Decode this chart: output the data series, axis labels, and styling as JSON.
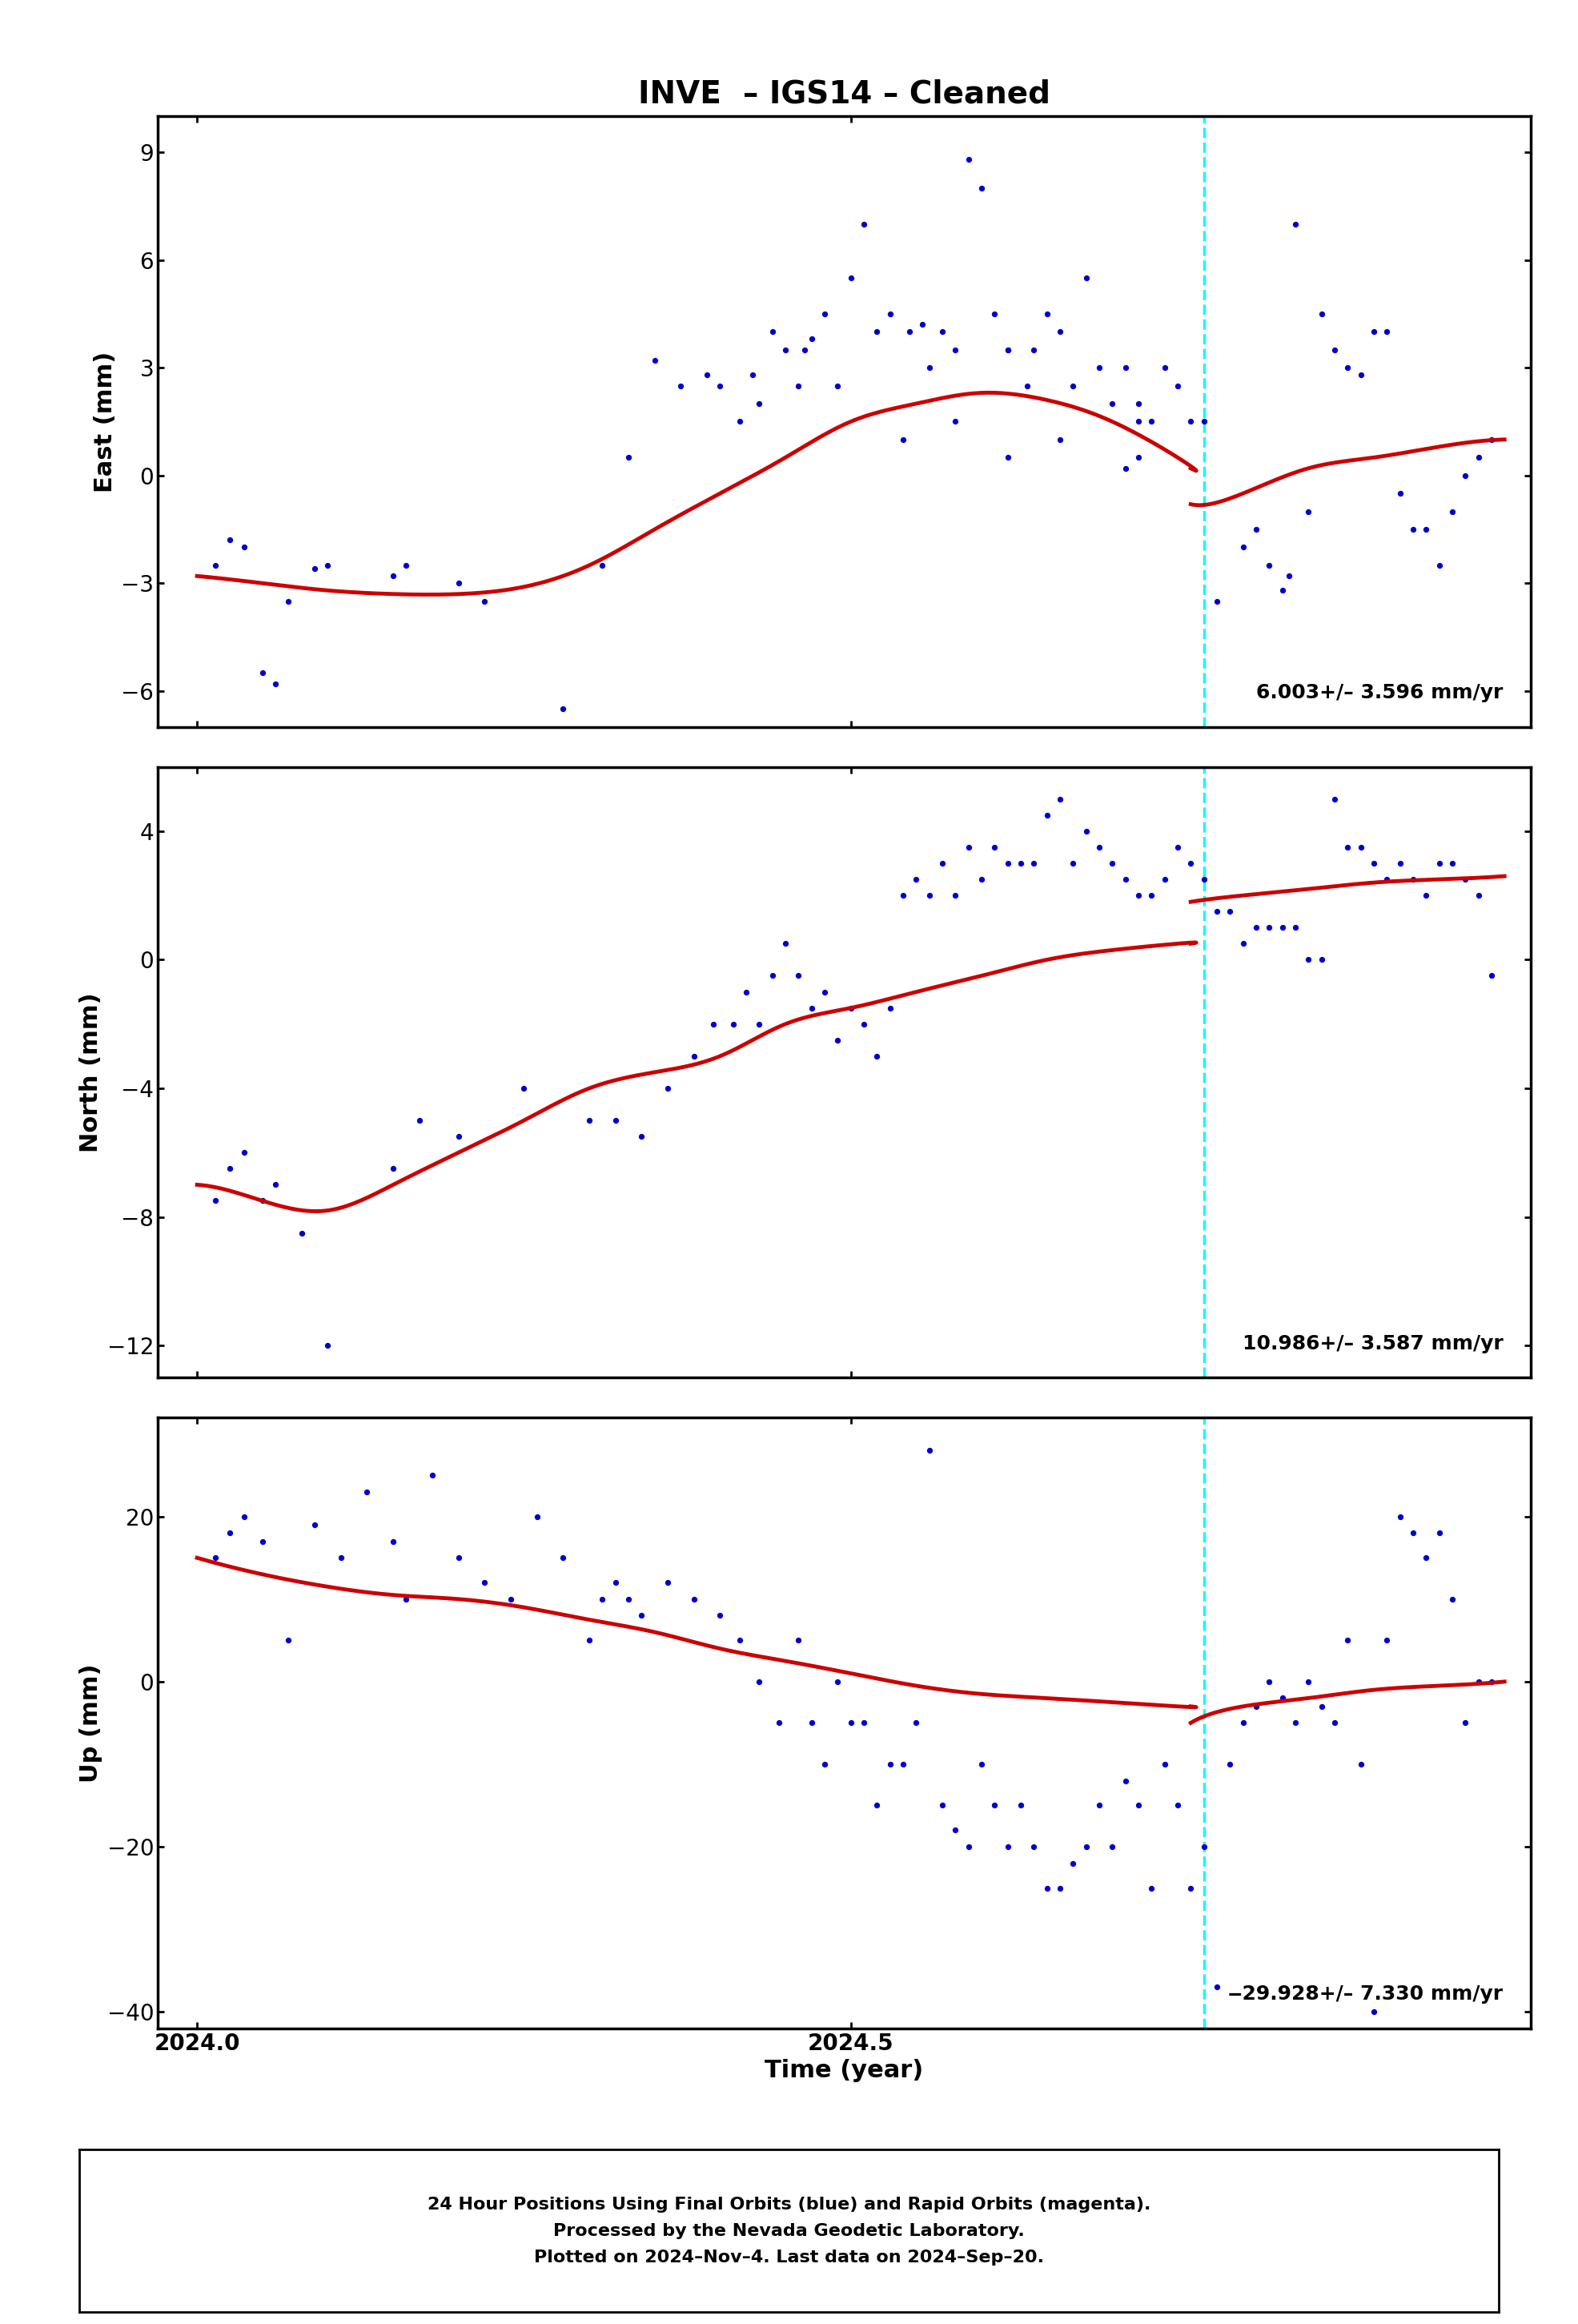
{
  "title": "INVE  – IGS14 – Cleaned",
  "xlabel": "Time (year)",
  "panels": [
    {
      "ylabel": "East (mm)",
      "ylim": [
        -7,
        10
      ],
      "yticks": [
        -6,
        -3,
        0,
        3,
        6,
        9
      ],
      "annotation": "6.003+/– 3.596 mm/yr",
      "scatter_x": [
        2024.014,
        2024.025,
        2024.036,
        2024.05,
        2024.06,
        2024.07,
        2024.09,
        2024.1,
        2024.15,
        2024.16,
        2024.2,
        2024.22,
        2024.28,
        2024.31,
        2024.33,
        2024.35,
        2024.37,
        2024.39,
        2024.4,
        2024.415,
        2024.425,
        2024.43,
        2024.44,
        2024.45,
        2024.46,
        2024.465,
        2024.47,
        2024.48,
        2024.49,
        2024.5,
        2024.51,
        2024.52,
        2024.53,
        2024.545,
        2024.555,
        2024.56,
        2024.57,
        2024.58,
        2024.59,
        2024.6,
        2024.61,
        2024.62,
        2024.64,
        2024.65,
        2024.66,
        2024.67,
        2024.69,
        2024.7,
        2024.71,
        2024.72,
        2024.73,
        2024.74,
        2024.75,
        2024.68,
        2024.76,
        2024.77,
        2024.72,
        2024.62,
        2024.58,
        2024.66,
        2024.71,
        2024.54,
        2024.635,
        2024.72,
        2024.62,
        2024.78,
        2024.8,
        2024.81,
        2024.82,
        2024.83,
        2024.835,
        2024.84,
        2024.85,
        2024.86,
        2024.87,
        2024.88,
        2024.89,
        2024.9,
        2024.91,
        2024.92,
        2024.93,
        2024.94,
        2024.95,
        2024.96,
        2024.97,
        2024.98,
        2024.99
      ],
      "scatter_y": [
        -2.5,
        -1.8,
        -2.0,
        -5.5,
        -5.8,
        -3.5,
        -2.6,
        -2.5,
        -2.8,
        -2.5,
        -3.0,
        -3.5,
        -6.5,
        -2.5,
        0.5,
        3.2,
        2.5,
        2.8,
        2.5,
        1.5,
        2.8,
        2.0,
        4.0,
        3.5,
        2.5,
        3.5,
        3.8,
        4.5,
        2.5,
        5.5,
        7.0,
        4.0,
        4.5,
        4.0,
        4.2,
        3.0,
        4.0,
        3.5,
        8.8,
        8.0,
        4.5,
        3.5,
        3.5,
        4.5,
        4.0,
        2.5,
        3.0,
        2.0,
        3.0,
        2.0,
        1.5,
        3.0,
        2.5,
        5.5,
        1.5,
        1.5,
        0.5,
        0.5,
        1.5,
        1.0,
        0.2,
        1.0,
        2.5,
        1.5,
        3.5,
        -3.5,
        -2.0,
        -1.5,
        -2.5,
        -3.2,
        -2.8,
        7.0,
        -1.0,
        4.5,
        3.5,
        3.0,
        2.8,
        4.0,
        4.0,
        -0.5,
        -1.5,
        -1.5,
        -2.5,
        -1.0,
        0.0,
        0.5,
        1.0
      ],
      "curve_x_before": [
        2024.0,
        2024.05,
        2024.1,
        2024.15,
        2024.2,
        2024.25,
        2024.3,
        2024.35,
        2024.4,
        2024.45,
        2024.5,
        2024.55,
        2024.6,
        2024.65,
        2024.7,
        2024.75,
        2024.76
      ],
      "curve_y_before": [
        -2.8,
        -3.0,
        -3.2,
        -3.3,
        -3.3,
        -3.1,
        -2.5,
        -1.5,
        -0.5,
        0.5,
        1.5,
        2.0,
        2.3,
        2.1,
        1.5,
        0.5,
        0.2
      ],
      "curve_x_after": [
        2024.76,
        2024.8,
        2024.85,
        2024.9,
        2024.95,
        2025.0
      ],
      "curve_y_after": [
        -0.8,
        -0.5,
        0.2,
        0.5,
        0.8,
        1.0
      ],
      "vline_x": 2024.77
    },
    {
      "ylabel": "North (mm)",
      "ylim": [
        -13,
        6
      ],
      "yticks": [
        -12,
        -8,
        -4,
        0,
        4
      ],
      "annotation": "10.986+/– 3.587 mm/yr",
      "scatter_x": [
        2024.014,
        2024.025,
        2024.036,
        2024.05,
        2024.06,
        2024.08,
        2024.1,
        2024.15,
        2024.17,
        2024.2,
        2024.25,
        2024.3,
        2024.32,
        2024.34,
        2024.36,
        2024.38,
        2024.395,
        2024.41,
        2024.42,
        2024.43,
        2024.44,
        2024.45,
        2024.46,
        2024.47,
        2024.48,
        2024.49,
        2024.5,
        2024.51,
        2024.52,
        2024.53,
        2024.54,
        2024.55,
        2024.56,
        2024.57,
        2024.58,
        2024.59,
        2024.6,
        2024.61,
        2024.62,
        2024.63,
        2024.64,
        2024.65,
        2024.66,
        2024.67,
        2024.68,
        2024.69,
        2024.7,
        2024.71,
        2024.72,
        2024.73,
        2024.74,
        2024.75,
        2024.76,
        2024.77,
        2024.78,
        2024.79,
        2024.8,
        2024.81,
        2024.82,
        2024.83,
        2024.84,
        2024.85,
        2024.86,
        2024.87,
        2024.88,
        2024.89,
        2024.9,
        2024.91,
        2024.92,
        2024.93,
        2024.94,
        2024.95,
        2024.96,
        2024.97,
        2024.98,
        2024.99
      ],
      "scatter_y": [
        -7.5,
        -6.5,
        -6.0,
        -7.5,
        -7.0,
        -8.5,
        -12.0,
        -6.5,
        -5.0,
        -5.5,
        -4.0,
        -5.0,
        -5.0,
        -5.5,
        -4.0,
        -3.0,
        -2.0,
        -2.0,
        -1.0,
        -2.0,
        -0.5,
        0.5,
        -0.5,
        -1.5,
        -1.0,
        -2.5,
        -1.5,
        -2.0,
        -3.0,
        -1.5,
        2.0,
        2.5,
        2.0,
        3.0,
        2.0,
        3.5,
        2.5,
        3.5,
        3.0,
        3.0,
        3.0,
        4.5,
        5.0,
        3.0,
        4.0,
        3.5,
        3.0,
        2.5,
        2.0,
        2.0,
        2.5,
        3.5,
        3.0,
        2.5,
        1.5,
        1.5,
        0.5,
        1.0,
        1.0,
        1.0,
        1.0,
        0.0,
        0.0,
        5.0,
        3.5,
        3.5,
        3.0,
        2.5,
        3.0,
        2.5,
        2.0,
        3.0,
        3.0,
        2.5,
        2.0,
        -0.5
      ],
      "curve_x_before": [
        2024.0,
        2024.05,
        2024.1,
        2024.15,
        2024.2,
        2024.25,
        2024.3,
        2024.35,
        2024.4,
        2024.45,
        2024.5,
        2024.55,
        2024.6,
        2024.65,
        2024.7,
        2024.75,
        2024.76
      ],
      "curve_y_before": [
        -7.0,
        -7.5,
        -7.8,
        -7.0,
        -6.0,
        -5.0,
        -4.0,
        -3.5,
        -3.0,
        -2.0,
        -1.5,
        -1.0,
        -0.5,
        0.0,
        0.3,
        0.5,
        0.5
      ],
      "curve_x_after": [
        2024.76,
        2024.8,
        2024.85,
        2024.9,
        2024.95,
        2025.0
      ],
      "curve_y_after": [
        1.8,
        2.0,
        2.2,
        2.4,
        2.5,
        2.6
      ],
      "vline_x": 2024.77
    },
    {
      "ylabel": "Up (mm)",
      "ylim": [
        -42,
        32
      ],
      "yticks": [
        -40,
        -20,
        0,
        20
      ],
      "annotation": "‒29.928+/– 7.330 mm/yr",
      "scatter_x": [
        2024.014,
        2024.025,
        2024.036,
        2024.05,
        2024.07,
        2024.09,
        2024.11,
        2024.13,
        2024.15,
        2024.16,
        2024.18,
        2024.2,
        2024.22,
        2024.24,
        2024.26,
        2024.28,
        2024.3,
        2024.31,
        2024.32,
        2024.33,
        2024.34,
        2024.36,
        2024.38,
        2024.4,
        2024.415,
        2024.43,
        2024.445,
        2024.46,
        2024.47,
        2024.48,
        2024.49,
        2024.5,
        2024.51,
        2024.52,
        2024.53,
        2024.54,
        2024.55,
        2024.56,
        2024.57,
        2024.58,
        2024.59,
        2024.6,
        2024.61,
        2024.62,
        2024.63,
        2024.64,
        2024.65,
        2024.66,
        2024.67,
        2024.68,
        2024.69,
        2024.7,
        2024.71,
        2024.72,
        2024.73,
        2024.74,
        2024.75,
        2024.76,
        2024.77,
        2024.78,
        2024.79,
        2024.8,
        2024.81,
        2024.82,
        2024.83,
        2024.84,
        2024.85,
        2024.86,
        2024.87,
        2024.88,
        2024.89,
        2024.9,
        2024.91,
        2024.92,
        2024.93,
        2024.94,
        2024.95,
        2024.96,
        2024.97,
        2024.98,
        2024.99
      ],
      "scatter_y": [
        15.0,
        18.0,
        20.0,
        17.0,
        5.0,
        19.0,
        15.0,
        23.0,
        17.0,
        10.0,
        25.0,
        15.0,
        12.0,
        10.0,
        20.0,
        15.0,
        5.0,
        10.0,
        12.0,
        10.0,
        8.0,
        12.0,
        10.0,
        8.0,
        5.0,
        0.0,
        -5.0,
        5.0,
        -5.0,
        -10.0,
        0.0,
        -5.0,
        -5.0,
        -15.0,
        -10.0,
        -10.0,
        -5.0,
        28.0,
        -15.0,
        -18.0,
        -20.0,
        -10.0,
        -15.0,
        -20.0,
        -15.0,
        -20.0,
        -25.0,
        -25.0,
        -22.0,
        -20.0,
        -15.0,
        -20.0,
        -12.0,
        -15.0,
        -25.0,
        -10.0,
        -15.0,
        -25.0,
        -20.0,
        -37.0,
        -10.0,
        -5.0,
        -3.0,
        0.0,
        -2.0,
        -5.0,
        0.0,
        -3.0,
        -5.0,
        5.0,
        -10.0,
        -40.0,
        5.0,
        20.0,
        18.0,
        15.0,
        18.0,
        10.0,
        -5.0,
        0.0,
        0.0
      ],
      "curve_x_before": [
        2024.0,
        2024.05,
        2024.1,
        2024.15,
        2024.2,
        2024.25,
        2024.3,
        2024.35,
        2024.4,
        2024.45,
        2024.5,
        2024.55,
        2024.6,
        2024.65,
        2024.7,
        2024.75,
        2024.76
      ],
      "curve_y_before": [
        15.0,
        13.0,
        11.5,
        10.5,
        10.0,
        9.0,
        7.5,
        6.0,
        4.0,
        2.5,
        1.0,
        -0.5,
        -1.5,
        -2.0,
        -2.5,
        -3.0,
        -3.0
      ],
      "curve_x_after": [
        2024.76,
        2024.8,
        2024.85,
        2024.9,
        2024.95,
        2025.0
      ],
      "curve_y_after": [
        -5.0,
        -3.0,
        -2.0,
        -1.0,
        -0.5,
        0.0
      ],
      "vline_x": 2024.77
    }
  ],
  "xlim": [
    2023.97,
    2025.02
  ],
  "xticks": [
    2024.0,
    2024.5
  ],
  "xticklabels": [
    "2024.0",
    "2024.5"
  ],
  "dot_color": "#0000CC",
  "curve_color": "#CC0000",
  "vline_color": "cyan",
  "dot_size": 18,
  "curve_lw": 3.5,
  "vline_lw": 2.5,
  "note_text": "24 Hour Positions Using Final Orbits (blue) and Rapid Orbits (magenta).\nProcessed by the Nevada Geodetic Laboratory.\nPlotted on 2024–Nov–4. Last data on 2024–Sep–20.",
  "background_color": "#ffffff"
}
